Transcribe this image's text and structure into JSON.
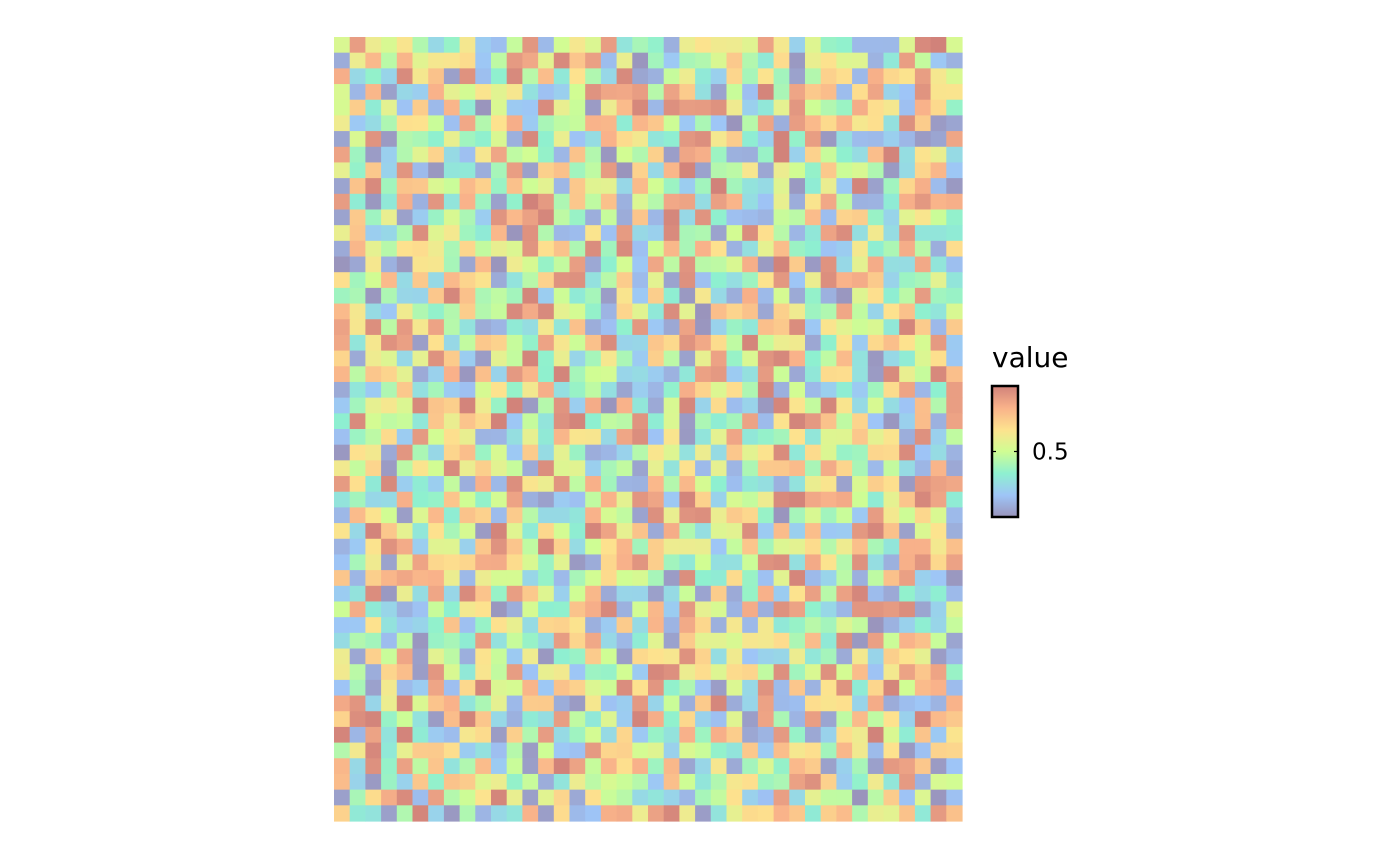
{
  "chart_data": {
    "type": "heatmap",
    "title": "",
    "xlabel": "",
    "ylabel": "",
    "grid": false,
    "n_cols": 40,
    "n_rows": 50,
    "value_range": [
      0,
      1
    ],
    "values_note": "",
    "colorscale": {
      "stops": [
        "#9a94bc",
        "#9ec5f7",
        "#8ef0d0",
        "#d0fd93",
        "#fde28e",
        "#f9b28a",
        "#d1827a"
      ],
      "alpha": 1
    },
    "legend": {
      "title": "value",
      "placement": "right",
      "ticks": [
        {
          "value": 0.5,
          "label": "0.5"
        }
      ]
    }
  }
}
